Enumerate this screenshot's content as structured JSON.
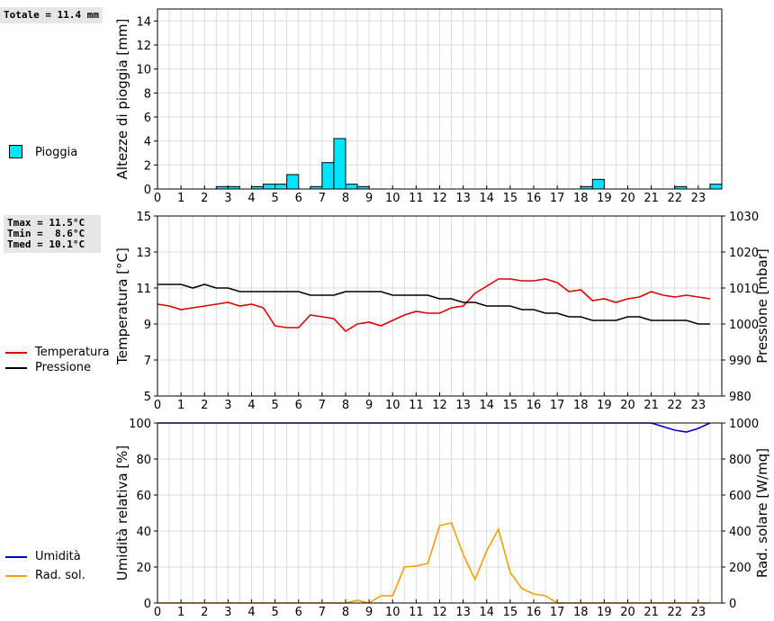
{
  "rain_total": "Totale = 11.4 mm",
  "temp_stats": {
    "tmax": "Tmax = 11.5°C",
    "tmin": "Tmin =  8.6°C",
    "tmed": "Tmed = 10.1°C"
  },
  "legends": {
    "rain": "Pioggia",
    "temp": "Temperatura",
    "pres": "Pressione",
    "hum": "Umidità",
    "rad": "Rad. sol."
  },
  "colors": {
    "rain": "#00e5ff",
    "temp": "#dd0000",
    "pres": "#000000",
    "hum": "#0000cc",
    "rad": "#f0a000"
  },
  "chart_data": [
    {
      "type": "bar",
      "ylabel": "Altezze di pioggia [mm]",
      "ylim": [
        0,
        15
      ],
      "yticks": [
        0,
        2,
        4,
        6,
        8,
        10,
        12,
        14
      ],
      "xticks": [
        0,
        1,
        2,
        3,
        4,
        5,
        6,
        7,
        8,
        9,
        10,
        11,
        12,
        13,
        14,
        15,
        16,
        17,
        18,
        19,
        20,
        21,
        22,
        23
      ],
      "bin_hours": 0.5,
      "series": [
        {
          "name": "Pioggia",
          "x": [
            2.5,
            3.0,
            4.0,
            4.5,
            5.0,
            5.5,
            6.5,
            7.0,
            7.5,
            8.0,
            8.5,
            18.0,
            18.5,
            22.0,
            23.5
          ],
          "values": [
            0.2,
            0.2,
            0.2,
            0.4,
            0.4,
            1.2,
            0.2,
            2.2,
            4.2,
            0.4,
            0.2,
            0.2,
            0.8,
            0.2,
            0.4
          ]
        }
      ]
    },
    {
      "type": "line",
      "ylabel": "Temperatura [°C]",
      "y2label": "Pressione [mbar]",
      "ylim": [
        5,
        15
      ],
      "yticks": [
        5,
        7,
        9,
        11,
        13,
        15
      ],
      "y2lim": [
        980,
        1030
      ],
      "y2ticks": [
        980,
        990,
        1000,
        1010,
        1020,
        1030
      ],
      "xticks": [
        0,
        1,
        2,
        3,
        4,
        5,
        6,
        7,
        8,
        9,
        10,
        11,
        12,
        13,
        14,
        15,
        16,
        17,
        18,
        19,
        20,
        21,
        22,
        23
      ],
      "series": [
        {
          "name": "Temperatura",
          "axis": "left",
          "x": [
            0,
            0.5,
            1,
            1.5,
            2,
            2.5,
            3,
            3.5,
            4,
            4.5,
            5,
            5.5,
            6,
            6.5,
            7,
            7.5,
            8,
            8.5,
            9,
            9.5,
            10,
            10.5,
            11,
            11.5,
            12,
            12.5,
            13,
            13.5,
            14,
            14.5,
            15,
            15.5,
            16,
            16.5,
            17,
            17.5,
            18,
            18.5,
            19,
            19.5,
            20,
            20.5,
            21,
            21.5,
            22,
            22.5,
            23,
            23.5
          ],
          "values": [
            10.1,
            10.0,
            9.8,
            9.9,
            10.0,
            10.1,
            10.2,
            10.0,
            10.1,
            9.9,
            8.9,
            8.8,
            8.8,
            9.5,
            9.4,
            9.3,
            8.6,
            9.0,
            9.1,
            8.9,
            9.2,
            9.5,
            9.7,
            9.6,
            9.6,
            9.9,
            10.0,
            10.7,
            11.1,
            11.5,
            11.5,
            11.4,
            11.4,
            11.5,
            11.3,
            10.8,
            10.9,
            10.3,
            10.4,
            10.2,
            10.4,
            10.5,
            10.8,
            10.6,
            10.5,
            10.6,
            10.5,
            10.4
          ]
        },
        {
          "name": "Pressione",
          "axis": "right",
          "x": [
            0,
            0.5,
            1,
            1.5,
            2,
            2.5,
            3,
            3.5,
            4,
            4.5,
            5,
            5.5,
            6,
            6.5,
            7,
            7.5,
            8,
            8.5,
            9,
            9.5,
            10,
            10.5,
            11,
            11.5,
            12,
            12.5,
            13,
            13.5,
            14,
            14.5,
            15,
            15.5,
            16,
            16.5,
            17,
            17.5,
            18,
            18.5,
            19,
            19.5,
            20,
            20.5,
            21,
            21.5,
            22,
            22.5,
            23,
            23.5
          ],
          "values": [
            1011,
            1011,
            1011,
            1010,
            1011,
            1010,
            1010,
            1009,
            1009,
            1009,
            1009,
            1009,
            1009,
            1008,
            1008,
            1008,
            1009,
            1009,
            1009,
            1009,
            1008,
            1008,
            1008,
            1008,
            1007,
            1007,
            1006,
            1006,
            1005,
            1005,
            1005,
            1004,
            1004,
            1003,
            1003,
            1002,
            1002,
            1001,
            1001,
            1001,
            1002,
            1002,
            1001,
            1001,
            1001,
            1001,
            1000,
            1000
          ]
        }
      ]
    },
    {
      "type": "line",
      "ylabel": "Umidità relativa [%]",
      "y2label": "Rad. solare [W/mq]",
      "ylim": [
        0,
        100
      ],
      "yticks": [
        0,
        20,
        40,
        60,
        80,
        100
      ],
      "y2lim": [
        0,
        1000
      ],
      "y2ticks": [
        0,
        200,
        400,
        600,
        800,
        1000
      ],
      "xticks": [
        0,
        1,
        2,
        3,
        4,
        5,
        6,
        7,
        8,
        9,
        10,
        11,
        12,
        13,
        14,
        15,
        16,
        17,
        18,
        19,
        20,
        21,
        22,
        23
      ],
      "series": [
        {
          "name": "Umidità",
          "axis": "left",
          "x": [
            0,
            21.0,
            21.5,
            22.0,
            22.5,
            23.0,
            23.5
          ],
          "values": [
            100,
            100,
            98,
            96,
            95,
            97,
            100
          ]
        },
        {
          "name": "Rad. sol.",
          "axis": "right",
          "x": [
            0,
            8,
            8.5,
            9,
            9.5,
            10,
            10.5,
            11,
            11.5,
            12,
            12.5,
            13,
            13.5,
            14,
            14.5,
            15,
            15.5,
            16,
            16.5,
            17,
            17.5,
            23.5
          ],
          "values": [
            0,
            0,
            15,
            0,
            40,
            40,
            200,
            205,
            220,
            430,
            445,
            270,
            130,
            290,
            410,
            170,
            80,
            50,
            40,
            0,
            0,
            0
          ]
        }
      ]
    }
  ]
}
